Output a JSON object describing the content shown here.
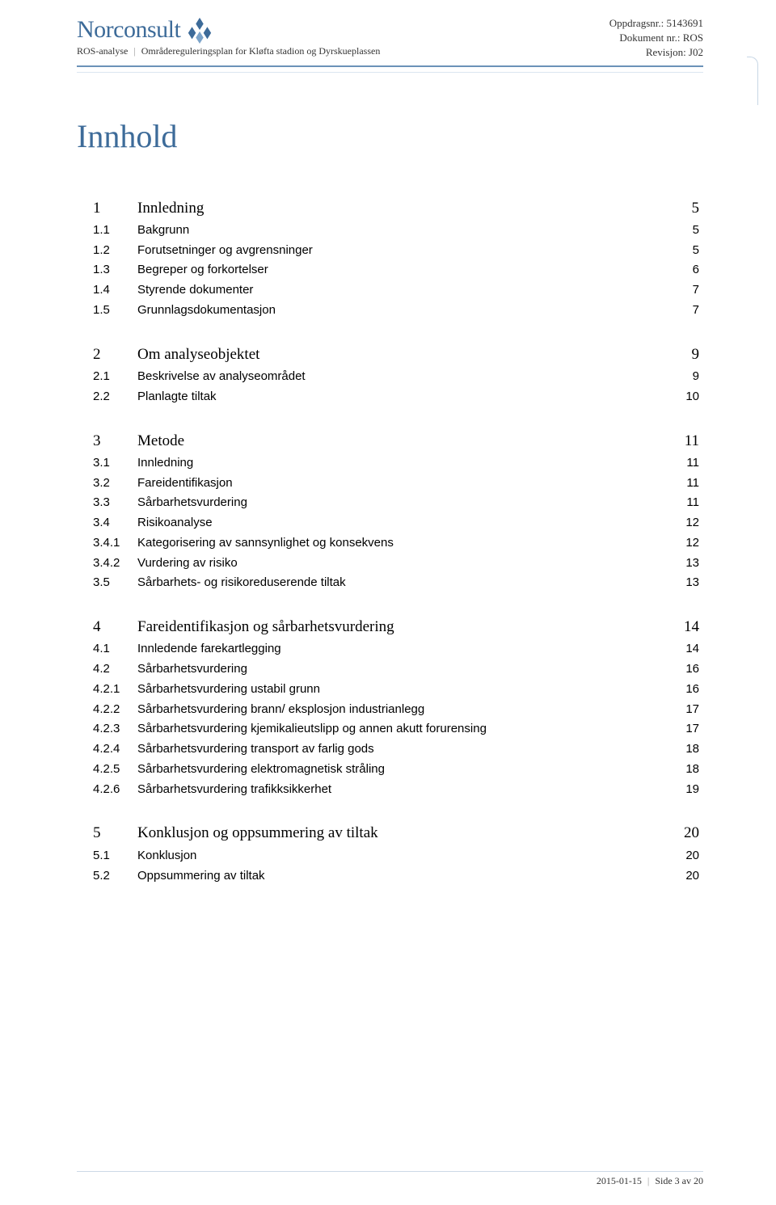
{
  "header": {
    "company": "Norconsult",
    "logo_fill": "#3d6b99",
    "sub_left": "ROS-analyse",
    "sub_right": "Områdereguleringsplan for Kløfta stadion og Dyrskueplassen",
    "right_lines": [
      "Oppdragsnr.: 5143691",
      "Dokument nr.: ROS",
      "Revisjon: J02"
    ],
    "rule_color": "#6b92b8",
    "heading_color": "#3d6b99"
  },
  "title": "Innhold",
  "toc": [
    {
      "num": "1",
      "title": "Innledning",
      "page": "5",
      "level": 1,
      "children": [
        {
          "num": "1.1",
          "title": "Bakgrunn",
          "page": "5",
          "level": 2
        },
        {
          "num": "1.2",
          "title": "Forutsetninger og avgrensninger",
          "page": "5",
          "level": 2
        },
        {
          "num": "1.3",
          "title": "Begreper og forkortelser",
          "page": "6",
          "level": 2
        },
        {
          "num": "1.4",
          "title": "Styrende dokumenter",
          "page": "7",
          "level": 2
        },
        {
          "num": "1.5",
          "title": "Grunnlagsdokumentasjon",
          "page": "7",
          "level": 2
        }
      ]
    },
    {
      "num": "2",
      "title": "Om analyseobjektet",
      "page": "9",
      "level": 1,
      "children": [
        {
          "num": "2.1",
          "title": "Beskrivelse av analyseområdet",
          "page": "9",
          "level": 2
        },
        {
          "num": "2.2",
          "title": "Planlagte tiltak",
          "page": "10",
          "level": 2
        }
      ]
    },
    {
      "num": "3",
      "title": "Metode",
      "page": "11",
      "level": 1,
      "children": [
        {
          "num": "3.1",
          "title": "Innledning",
          "page": "11",
          "level": 2
        },
        {
          "num": "3.2",
          "title": "Fareidentifikasjon",
          "page": "11",
          "level": 2
        },
        {
          "num": "3.3",
          "title": "Sårbarhetsvurdering",
          "page": "11",
          "level": 2
        },
        {
          "num": "3.4",
          "title": "Risikoanalyse",
          "page": "12",
          "level": 2
        },
        {
          "num": "3.4.1",
          "title": "Kategorisering av sannsynlighet og konsekvens",
          "page": "12",
          "level": 3
        },
        {
          "num": "3.4.2",
          "title": "Vurdering av risiko",
          "page": "13",
          "level": 3
        },
        {
          "num": "3.5",
          "title": "Sårbarhets- og risikoreduserende tiltak",
          "page": "13",
          "level": 2
        }
      ]
    },
    {
      "num": "4",
      "title": "Fareidentifikasjon og sårbarhetsvurdering",
      "page": "14",
      "level": 1,
      "children": [
        {
          "num": "4.1",
          "title": "Innledende farekartlegging",
          "page": "14",
          "level": 2
        },
        {
          "num": "4.2",
          "title": "Sårbarhetsvurdering",
          "page": "16",
          "level": 2
        },
        {
          "num": "4.2.1",
          "title": "Sårbarhetsvurdering ustabil grunn",
          "page": "16",
          "level": 3
        },
        {
          "num": "4.2.2",
          "title": "Sårbarhetsvurdering brann/ eksplosjon industrianlegg",
          "page": "17",
          "level": 3
        },
        {
          "num": "4.2.3",
          "title": "Sårbarhetsvurdering kjemikalieutslipp og annen akutt forurensing",
          "page": "17",
          "level": 3
        },
        {
          "num": "4.2.4",
          "title": "Sårbarhetsvurdering transport av farlig gods",
          "page": "18",
          "level": 3
        },
        {
          "num": "4.2.5",
          "title": "Sårbarhetsvurdering elektromagnetisk stråling",
          "page": "18",
          "level": 3
        },
        {
          "num": "4.2.6",
          "title": "Sårbarhetsvurdering trafikksikkerhet",
          "page": "19",
          "level": 3
        }
      ]
    },
    {
      "num": "5",
      "title": "Konklusjon og oppsummering av tiltak",
      "page": "20",
      "level": 1,
      "children": [
        {
          "num": "5.1",
          "title": "Konklusjon",
          "page": "20",
          "level": 2
        },
        {
          "num": "5.2",
          "title": "Oppsummering av tiltak",
          "page": "20",
          "level": 2
        }
      ]
    }
  ],
  "footer": {
    "date": "2015-01-15",
    "page_text": "Side 3 av 20"
  }
}
